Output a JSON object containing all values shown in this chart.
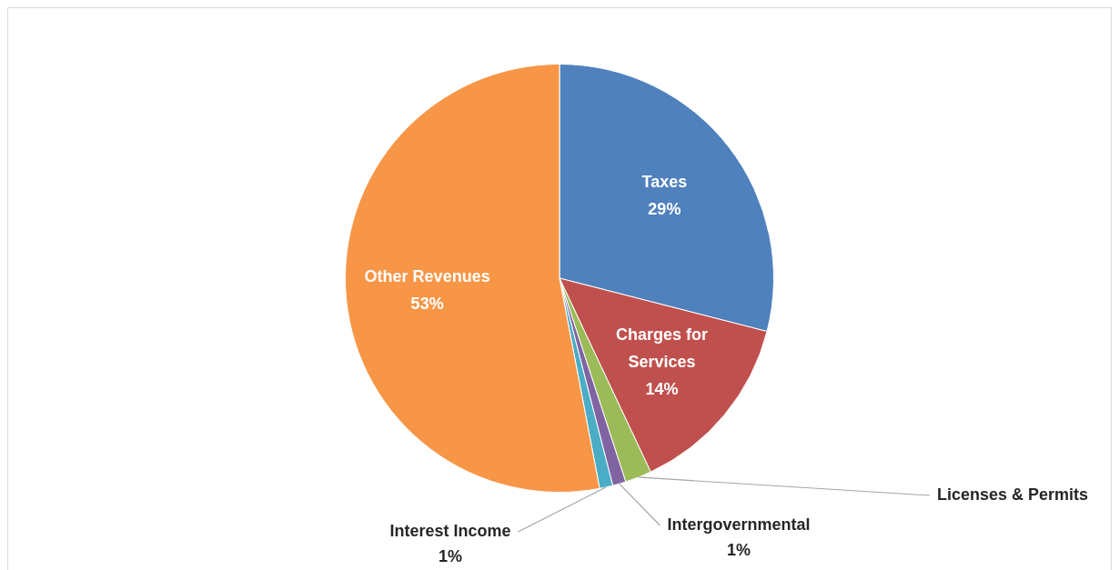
{
  "chart_data": {
    "type": "pie",
    "categories": [
      "Taxes",
      "Charges for Services",
      "Licenses & Permits",
      "Intergovernmental",
      "Interest Income",
      "Other Revenues"
    ],
    "values": [
      29,
      14,
      2,
      1,
      1,
      53
    ],
    "value_labels": [
      "29%",
      "14%",
      null,
      "1%",
      "1%",
      "53%"
    ],
    "colors": [
      "#4f81bd",
      "#c0504d",
      "#9bbb59",
      "#8064a2",
      "#4bacc6",
      "#f79646"
    ],
    "legend": false
  }
}
